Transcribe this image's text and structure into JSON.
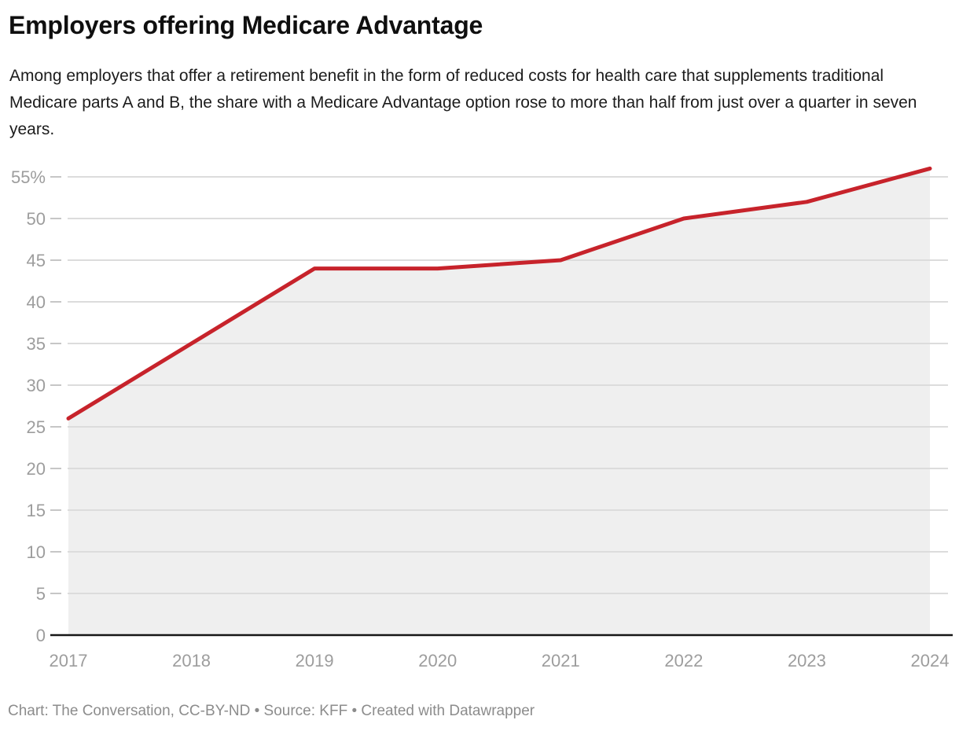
{
  "header": {
    "title": "Employers offering Medicare Advantage",
    "subtitle": "Among employers that offer a retirement benefit in the form of reduced costs for health care that supplements traditional Medicare parts A and B, the share with a Medicare Advantage option rose to more than half from just over a quarter in seven years."
  },
  "footer": {
    "attribution": "Chart: The Conversation, CC-BY-ND • Source: KFF • Created with Datawrapper"
  },
  "chart_data": {
    "type": "area",
    "title": "Employers offering Medicare Advantage",
    "categories": [
      "2017",
      "2018",
      "2019",
      "2020",
      "2021",
      "2022",
      "2023",
      "2024"
    ],
    "values": [
      26,
      35,
      44,
      44,
      45,
      50,
      52,
      56
    ],
    "xlabel": "",
    "ylabel": "",
    "ylim": [
      0,
      57
    ],
    "yticks": [
      0,
      5,
      10,
      15,
      20,
      25,
      30,
      35,
      40,
      45,
      50,
      55
    ],
    "ytick_top_suffix": "%",
    "grid": true,
    "legend": "none",
    "colors": {
      "line": "#c7232b",
      "area_fill": "#efefef",
      "gridline": "#dcdcdc",
      "tick": "#c6c6c6",
      "baseline": "#161616",
      "axis_text": "#9d9d9d"
    }
  }
}
